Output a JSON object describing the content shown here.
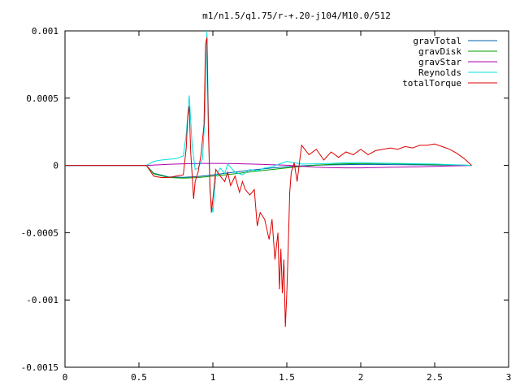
{
  "chart_data": {
    "type": "line",
    "title": "m1/n1.5/q1.75/r-+.20-j104/M10.0/512",
    "xlabel": "",
    "ylabel": "",
    "xlim": [
      0,
      3
    ],
    "ylim": [
      -0.0015,
      0.001
    ],
    "x_ticks": [
      0,
      0.5,
      1,
      1.5,
      2,
      2.5,
      3
    ],
    "x_tick_labels": [
      "0",
      "0.5",
      "1",
      "1.5",
      "2",
      "2.5",
      "3"
    ],
    "y_ticks": [
      0.001,
      0.0005,
      0,
      -0.0005,
      -0.001,
      -0.0015
    ],
    "y_tick_labels": [
      "0.001",
      "0.0005",
      "0",
      "-0.0005",
      "-0.001",
      "-0.0015"
    ],
    "grid": false,
    "legend_position": "top-right",
    "series": [
      {
        "name": "gravTotal",
        "color": "#0060ad",
        "x": [
          0.55,
          0.6,
          0.7,
          0.8,
          0.9,
          1.0,
          1.1,
          1.2,
          1.3,
          1.4,
          1.5,
          1.6,
          1.7,
          1.8,
          1.9,
          2.0,
          2.1,
          2.2,
          2.3,
          2.4,
          2.5,
          2.6,
          2.7,
          2.75
        ],
        "values": [
          0,
          -5.8e-05,
          -8.5e-05,
          -8.8e-05,
          -8.2e-05,
          -7e-05,
          -5.6e-05,
          -4.2e-05,
          -3e-05,
          -1.9e-05,
          -1e-05,
          -3e-06,
          2e-06,
          4e-06,
          6e-06,
          7e-06,
          7e-06,
          6e-06,
          5e-06,
          4e-06,
          3e-06,
          2e-06,
          1e-06,
          0
        ]
      },
      {
        "name": "gravDisk",
        "color": "#009e00",
        "x": [
          0.55,
          0.6,
          0.7,
          0.8,
          0.9,
          1.0,
          1.1,
          1.2,
          1.3,
          1.4,
          1.5,
          1.6,
          1.7,
          1.8,
          1.9,
          2.0,
          2.1,
          2.2,
          2.3,
          2.4,
          2.5,
          2.6,
          2.7,
          2.75
        ],
        "values": [
          0,
          -6.2e-05,
          -9e-05,
          -9.4e-05,
          -9e-05,
          -8e-05,
          -6.8e-05,
          -5.5e-05,
          -4.2e-05,
          -3e-05,
          -1.8e-05,
          -8e-06,
          2e-06,
          8e-06,
          1.2e-05,
          1.4e-05,
          1.4e-05,
          1.3e-05,
          1.1e-05,
          9e-06,
          6e-06,
          4e-06,
          2e-06,
          0
        ]
      },
      {
        "name": "gravStar",
        "color": "#b000b0",
        "x": [
          0.55,
          0.7,
          0.8,
          0.9,
          1.0,
          1.1,
          1.2,
          1.3,
          1.4,
          1.5,
          1.6,
          1.7,
          1.8,
          1.9,
          2.0,
          2.1,
          2.2,
          2.3,
          2.4,
          2.5,
          2.6,
          2.7,
          2.75
        ],
        "values": [
          0,
          8e-06,
          1.2e-05,
          1.4e-05,
          1.5e-05,
          1.4e-05,
          1.2e-05,
          9e-06,
          5e-06,
          1e-06,
          -6e-06,
          -1.3e-05,
          -1.7e-05,
          -1.8e-05,
          -1.8e-05,
          -1.6e-05,
          -1.4e-05,
          -1.2e-05,
          -1e-05,
          -7e-06,
          -4e-06,
          -2e-06,
          0
        ]
      },
      {
        "name": "Reynolds",
        "color": "#00e0e0",
        "x": [
          0.55,
          0.6,
          0.65,
          0.7,
          0.75,
          0.8,
          0.82,
          0.84,
          0.86,
          0.88,
          0.9,
          0.93,
          0.95,
          0.96,
          0.97,
          0.98,
          1.0,
          1.02,
          1.05,
          1.08,
          1.1,
          1.15,
          1.2,
          1.25,
          1.3,
          1.35,
          1.4,
          1.45,
          1.5,
          1.55,
          1.6,
          1.7,
          1.8,
          1.9,
          2.0,
          2.1,
          2.2,
          2.3,
          2.4,
          2.5,
          2.6,
          2.7,
          2.75
        ],
        "values": [
          0,
          3e-05,
          4e-05,
          4.5e-05,
          5e-05,
          7e-05,
          0.00023,
          0.00052,
          0.00015,
          -3e-05,
          -2e-05,
          5e-05,
          0.00045,
          0.001,
          0.00036,
          -0.0002,
          -0.00035,
          -8e-05,
          -2e-05,
          -6e-05,
          1e-05,
          -5e-05,
          -7e-05,
          -3e-05,
          -4e-05,
          -2e-05,
          -1e-05,
          1e-05,
          3e-05,
          2e-05,
          1e-05,
          1.2e-05,
          1.5e-05,
          2e-05,
          2e-05,
          1.8e-05,
          1.6e-05,
          1.4e-05,
          1.2e-05,
          1e-05,
          6e-06,
          2e-06,
          0
        ]
      },
      {
        "name": "totalTorque",
        "color": "#dd0000",
        "x": [
          0.55,
          0.6,
          0.65,
          0.7,
          0.75,
          0.8,
          0.82,
          0.83,
          0.84,
          0.85,
          0.87,
          0.88,
          0.9,
          0.92,
          0.94,
          0.95,
          0.96,
          0.97,
          0.98,
          0.99,
          1.0,
          1.02,
          1.05,
          1.08,
          1.1,
          1.12,
          1.15,
          1.18,
          1.2,
          1.22,
          1.25,
          1.28,
          1.3,
          1.32,
          1.35,
          1.38,
          1.4,
          1.42,
          1.44,
          1.45,
          1.46,
          1.47,
          1.48,
          1.49,
          1.5,
          1.51,
          1.52,
          1.53,
          1.55,
          1.57,
          1.6,
          1.65,
          1.7,
          1.75,
          1.8,
          1.85,
          1.9,
          1.95,
          2.0,
          2.05,
          2.1,
          2.15,
          2.2,
          2.25,
          2.3,
          2.35,
          2.4,
          2.45,
          2.5,
          2.55,
          2.6,
          2.65,
          2.7,
          2.75
        ],
        "values": [
          0,
          -8e-05,
          -9e-05,
          -9e-05,
          -8e-05,
          -7e-05,
          0.00013,
          0.00036,
          0.00044,
          0.0001,
          -0.00025,
          -0.00012,
          -5e-05,
          8e-05,
          0.0003,
          0.0009,
          0.00095,
          0.00025,
          -0.00015,
          -0.00035,
          -0.00025,
          -3e-05,
          -8e-05,
          -0.00012,
          -5e-05,
          -0.00015,
          -8e-05,
          -0.0002,
          -0.00012,
          -0.00018,
          -0.00022,
          -0.00018,
          -0.00045,
          -0.00035,
          -0.0004,
          -0.00055,
          -0.0004,
          -0.0007,
          -0.0005,
          -0.00092,
          -0.00062,
          -0.00095,
          -0.0007,
          -0.0012,
          -0.00095,
          -0.0006,
          -0.0002,
          -5e-05,
          2e-05,
          -0.00012,
          0.00015,
          8e-05,
          0.00012,
          4e-05,
          0.0001,
          6e-05,
          0.0001,
          8e-05,
          0.00012,
          8e-05,
          0.00011,
          0.00012,
          0.00013,
          0.00012,
          0.00014,
          0.00013,
          0.00015,
          0.00015,
          0.00016,
          0.00014,
          0.00012,
          9e-05,
          5e-05,
          0
        ]
      }
    ]
  }
}
